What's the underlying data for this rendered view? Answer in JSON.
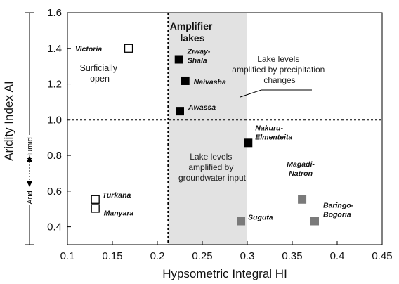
{
  "chart_data": {
    "type": "scatter",
    "xlabel": "Hypsometric Integral HI",
    "ylabel": "Aridity Index AI",
    "xlim": [
      0.1,
      0.45
    ],
    "ylim": [
      0.3,
      1.6
    ],
    "xticks": [
      "0.1",
      "0.15",
      "0.2",
      "0.25",
      "0.3",
      "0.35",
      "0.4",
      "0.45"
    ],
    "yticks": [
      "0.4",
      "0.6",
      "0.8",
      "1.0",
      "1.2",
      "1.4",
      "1.6"
    ],
    "shaded_region": {
      "x0": 0.212,
      "x1": 0.3,
      "color": "#e2e2e2"
    },
    "reference_lines": {
      "x": 0.212,
      "y": 1.0
    },
    "side_scale": {
      "humid_label": "Humid",
      "arid_label": "Arid"
    },
    "annotations": {
      "amplifier_title": "Amplifier lakes",
      "surficially_open": "Surficially open",
      "precipitation": "Lake levels amplified by precipitation changes",
      "groundwater": "Lake levels amplified by groundwater input"
    },
    "series": [
      {
        "style": "open",
        "color": "#000000",
        "points": [
          {
            "label": "Victoria",
            "x": 0.168,
            "y": 1.4
          },
          {
            "label": "Turkana",
            "x": 0.131,
            "y": 0.553
          },
          {
            "label": "Manyara",
            "x": 0.131,
            "y": 0.503
          }
        ]
      },
      {
        "style": "filled",
        "color": "#000000",
        "points": [
          {
            "label": "Ziway-Shala",
            "x": 0.224,
            "y": 1.338
          },
          {
            "label": "Naivasha",
            "x": 0.231,
            "y": 1.218
          },
          {
            "label": "Awassa",
            "x": 0.225,
            "y": 1.048
          },
          {
            "label": "Nakuru-Elmenteita",
            "x": 0.301,
            "y": 0.87
          }
        ]
      },
      {
        "style": "filled",
        "color": "#7a7a7a",
        "points": [
          {
            "label": "Suguta",
            "x": 0.293,
            "y": 0.432
          },
          {
            "label": "Magadi-Natron",
            "x": 0.361,
            "y": 0.553
          },
          {
            "label": "Baringo-Bogoria",
            "x": 0.375,
            "y": 0.432
          }
        ]
      }
    ]
  }
}
